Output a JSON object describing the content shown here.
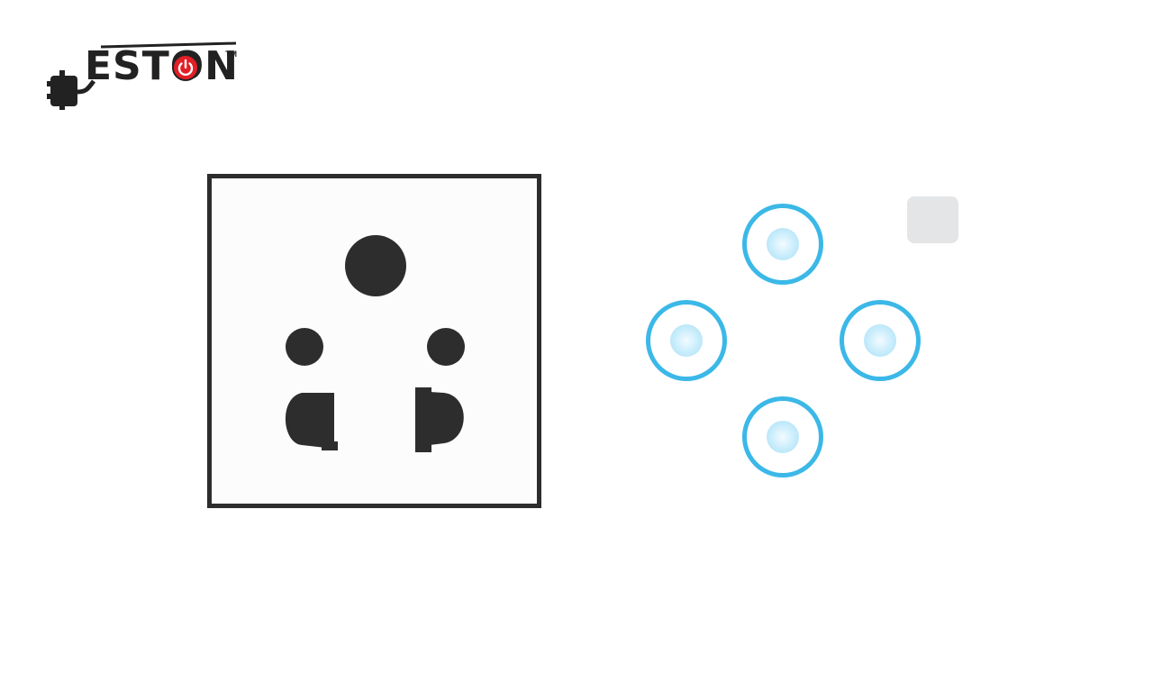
{
  "brand": {
    "name": "ESTON",
    "trademark": "TM",
    "accent_color": "#e31e25",
    "text_color": "#222222",
    "icons": [
      "plug-icon",
      "power-icon"
    ]
  },
  "socket": {
    "frame_color": "#2d2d2d",
    "face_color": "#fcfcfc",
    "pin_color": "#2d2d2d",
    "hole_count": 5
  },
  "indicators": {
    "ring_color": "#3bb8e8",
    "count": 4,
    "layout": [
      "top",
      "left",
      "right",
      "bottom"
    ]
  },
  "square_tile": {
    "color": "#e4e5e7"
  }
}
